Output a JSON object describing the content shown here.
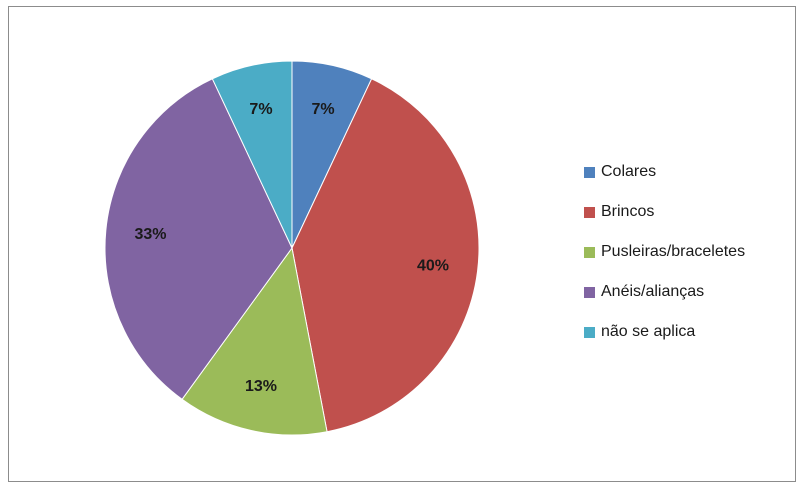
{
  "chart_data": {
    "type": "pie",
    "title": "",
    "slices": [
      {
        "label": "Colares",
        "value": 7,
        "value_label": "7%",
        "color": "#4f81bd"
      },
      {
        "label": "Brincos",
        "value": 40,
        "value_label": "40%",
        "color": "#c0504d"
      },
      {
        "label": "Pusleiras/braceletes",
        "value": 13,
        "value_label": "13%",
        "color": "#9bbb59"
      },
      {
        "label": "Anéis/alianças",
        "value": 33,
        "value_label": "33%",
        "color": "#8064a2"
      },
      {
        "label": "não se aplica",
        "value": 7,
        "value_label": "7%",
        "color": "#4bacc6"
      }
    ],
    "start_angle_deg": 0,
    "direction": "clockwise",
    "legend_position": "right"
  }
}
